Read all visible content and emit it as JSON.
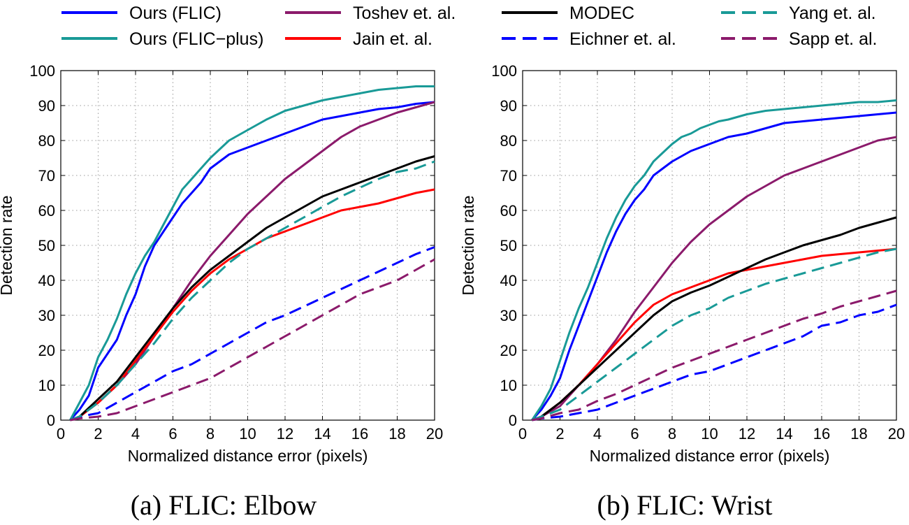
{
  "legend": {
    "entries": [
      {
        "name": "Ours (FLIC)",
        "color": "#0000ff",
        "dash": "solid"
      },
      {
        "name": "Ours (FLIC−plus)",
        "color": "#199a97",
        "dash": "solid"
      },
      {
        "name": "Toshev et. al.",
        "color": "#8b1a6b",
        "dash": "solid"
      },
      {
        "name": "Jain et. al.",
        "color": "#ff0000",
        "dash": "solid"
      },
      {
        "name": "MODEC",
        "color": "#000000",
        "dash": "solid"
      },
      {
        "name": "Eichner et. al.",
        "color": "#0000ff",
        "dash": "dashed"
      },
      {
        "name": "Yang et. al.",
        "color": "#199a97",
        "dash": "dashed"
      },
      {
        "name": "Sapp et. al.",
        "color": "#8b1a6b",
        "dash": "dashed"
      }
    ]
  },
  "chart_data": [
    {
      "type": "line",
      "title": "(a) FLIC: Elbow",
      "xlabel": "Normalized distance error (pixels)",
      "ylabel": "Detection rate",
      "xlim": [
        0,
        20
      ],
      "ylim": [
        0,
        100
      ],
      "xticks": [
        0,
        2,
        4,
        6,
        8,
        10,
        12,
        14,
        16,
        18,
        20
      ],
      "yticks": [
        0,
        10,
        20,
        30,
        40,
        50,
        60,
        70,
        80,
        90,
        100
      ],
      "grid": true,
      "series": [
        {
          "name": "Ours (FLIC)",
          "x": [
            1,
            1.5,
            2,
            2.5,
            3,
            3.5,
            4,
            4.5,
            5,
            5.5,
            6,
            6.5,
            7,
            7.5,
            8,
            8.5,
            9,
            9.5,
            10,
            10.5,
            11,
            12,
            13,
            14,
            15,
            16,
            17,
            18,
            19,
            20
          ],
          "y": [
            3,
            7,
            15,
            19,
            23,
            30,
            36,
            44,
            50,
            54,
            58,
            62,
            65,
            68,
            72,
            74,
            76,
            77,
            78,
            79,
            80,
            82,
            84,
            86,
            87,
            88,
            89,
            89.5,
            90.5,
            91
          ]
        },
        {
          "name": "Ours (FLIC−plus)",
          "x": [
            1,
            1.5,
            2,
            2.5,
            3,
            3.5,
            4,
            4.5,
            5,
            5.5,
            6,
            6.5,
            7,
            7.5,
            8,
            8.5,
            9,
            9.5,
            10,
            10.5,
            11,
            12,
            13,
            14,
            15,
            16,
            17,
            18,
            19,
            20
          ],
          "y": [
            5,
            10,
            18,
            23,
            29,
            36,
            42,
            47,
            51,
            56,
            61,
            66,
            69,
            72,
            75,
            77.5,
            80,
            81.5,
            83,
            84.5,
            86,
            88.5,
            90,
            91.5,
            92.5,
            93.5,
            94.5,
            95,
            95.5,
            95.5
          ]
        },
        {
          "name": "Toshev et. al.",
          "x": [
            1,
            2,
            3,
            4,
            5,
            6,
            7,
            8,
            9,
            10,
            11,
            12,
            13,
            14,
            15,
            16,
            17,
            18,
            19,
            20
          ],
          "y": [
            1,
            5,
            10,
            16,
            24,
            32,
            40,
            47,
            53,
            59,
            64,
            69,
            73,
            77,
            81,
            84,
            86,
            88,
            89.5,
            91
          ]
        },
        {
          "name": "Jain et. al.",
          "x": [
            1,
            2,
            3,
            4,
            5,
            6,
            7,
            8,
            9,
            10,
            11,
            12,
            13,
            14,
            15,
            16,
            17,
            18,
            19,
            20
          ],
          "y": [
            1,
            5,
            10,
            17,
            24,
            31,
            37,
            42,
            46,
            49,
            52,
            54,
            56,
            58,
            60,
            61,
            62,
            63.5,
            65,
            66
          ]
        },
        {
          "name": "MODEC",
          "x": [
            1,
            2,
            3,
            4,
            5,
            6,
            7,
            8,
            9,
            10,
            11,
            12,
            13,
            14,
            15,
            16,
            17,
            18,
            19,
            20
          ],
          "y": [
            1,
            6,
            11,
            18,
            25,
            32,
            38,
            43,
            47,
            51,
            55,
            58,
            61,
            64,
            66,
            68,
            70,
            72,
            74,
            75.5
          ]
        },
        {
          "name": "Eichner et. al.",
          "x": [
            1,
            2,
            3,
            4,
            5,
            6,
            7,
            8,
            9,
            10,
            11,
            12,
            13,
            14,
            15,
            16,
            17,
            18,
            19,
            20
          ],
          "y": [
            1,
            2,
            5,
            8,
            11,
            14,
            16,
            19,
            22,
            25,
            28,
            30,
            32.5,
            35,
            37.5,
            40,
            42.5,
            45,
            47.5,
            49.5
          ]
        },
        {
          "name": "Yang et. al.",
          "x": [
            1,
            2,
            3,
            4,
            5,
            6,
            7,
            8,
            9,
            10,
            11,
            12,
            13,
            14,
            15,
            16,
            17,
            18,
            19,
            20
          ],
          "y": [
            1,
            5,
            10,
            16,
            22,
            29,
            35,
            40,
            45,
            49,
            52,
            55,
            58,
            61,
            64,
            66.5,
            69,
            71,
            72,
            74
          ]
        },
        {
          "name": "Sapp et. al.",
          "x": [
            1,
            2,
            3,
            4,
            5,
            6,
            7,
            8,
            9,
            10,
            11,
            12,
            13,
            14,
            15,
            16,
            17,
            18,
            19,
            20
          ],
          "y": [
            0.5,
            1,
            2,
            4,
            6,
            8,
            10,
            12,
            15,
            18,
            21,
            24,
            27,
            30,
            33,
            36,
            38,
            40,
            43,
            46
          ]
        }
      ]
    },
    {
      "type": "line",
      "title": "(b) FLIC: Wrist",
      "xlabel": "Normalized distance error (pixels)",
      "ylabel": "Detection rate",
      "xlim": [
        0,
        20
      ],
      "ylim": [
        0,
        100
      ],
      "xticks": [
        0,
        2,
        4,
        6,
        8,
        10,
        12,
        14,
        16,
        18,
        20
      ],
      "yticks": [
        0,
        10,
        20,
        30,
        40,
        50,
        60,
        70,
        80,
        90,
        100
      ],
      "grid": true,
      "series": [
        {
          "name": "Ours (FLIC)",
          "x": [
            1,
            1.5,
            2,
            2.5,
            3,
            3.5,
            4,
            4.5,
            5,
            5.5,
            6,
            6.5,
            7,
            7.5,
            8,
            8.5,
            9,
            9.5,
            10,
            10.5,
            11,
            12,
            13,
            14,
            15,
            16,
            17,
            18,
            19,
            20
          ],
          "y": [
            3,
            7,
            12,
            20,
            27,
            34,
            41,
            48,
            54,
            59,
            63,
            66,
            70,
            72,
            74,
            75.5,
            77,
            78,
            79,
            80,
            81,
            82,
            83.5,
            85,
            85.5,
            86,
            86.5,
            87,
            87.5,
            88
          ]
        },
        {
          "name": "Ours (FLIC−plus)",
          "x": [
            1,
            1.5,
            2,
            2.5,
            3,
            3.5,
            4,
            4.5,
            5,
            5.5,
            6,
            6.5,
            7,
            7.5,
            8,
            8.5,
            9,
            9.5,
            10,
            10.5,
            11,
            12,
            13,
            14,
            15,
            16,
            17,
            18,
            19,
            20
          ],
          "y": [
            4,
            9,
            17,
            25,
            32,
            38,
            45,
            52,
            58,
            63,
            67,
            70,
            74,
            76.5,
            79,
            81,
            82,
            83.5,
            84.5,
            85.5,
            86,
            87.5,
            88.5,
            89,
            89.5,
            90,
            90.5,
            91,
            91,
            91.5
          ]
        },
        {
          "name": "Toshev et. al.",
          "x": [
            1,
            2,
            3,
            4,
            5,
            6,
            7,
            8,
            9,
            10,
            11,
            12,
            13,
            14,
            15,
            16,
            17,
            18,
            19,
            20
          ],
          "y": [
            1,
            4,
            10,
            16,
            23,
            31,
            38,
            45,
            51,
            56,
            60,
            64,
            67,
            70,
            72,
            74,
            76,
            78,
            80,
            81
          ]
        },
        {
          "name": "Jain et. al.",
          "x": [
            1,
            2,
            3,
            4,
            5,
            6,
            7,
            8,
            9,
            10,
            11,
            12,
            13,
            14,
            15,
            16,
            17,
            18,
            19,
            20
          ],
          "y": [
            1,
            5,
            10,
            16,
            22,
            28,
            33,
            36,
            38,
            40,
            42,
            43,
            44,
            45,
            46,
            47,
            47.5,
            48,
            48.5,
            49
          ]
        },
        {
          "name": "MODEC",
          "x": [
            1,
            2,
            3,
            4,
            5,
            6,
            7,
            8,
            9,
            10,
            11,
            12,
            13,
            14,
            15,
            16,
            17,
            18,
            19,
            20
          ],
          "y": [
            1,
            5,
            10,
            15,
            20,
            25,
            30,
            34,
            36.5,
            38.5,
            41,
            43.5,
            46,
            48,
            50,
            51.5,
            53,
            55,
            56.5,
            58
          ]
        },
        {
          "name": "Eichner et. al.",
          "x": [
            1,
            2,
            3,
            4,
            5,
            6,
            7,
            8,
            9,
            10,
            11,
            12,
            13,
            14,
            15,
            16,
            17,
            18,
            19,
            20
          ],
          "y": [
            0.5,
            1,
            2,
            3,
            5,
            7,
            9,
            11,
            13,
            14,
            16,
            18,
            20,
            22,
            24,
            27,
            28,
            30,
            31,
            33
          ]
        },
        {
          "name": "Yang et. al.",
          "x": [
            1,
            2,
            3,
            4,
            5,
            6,
            7,
            8,
            9,
            10,
            11,
            12,
            13,
            14,
            15,
            16,
            17,
            18,
            19,
            20
          ],
          "y": [
            1,
            3,
            7,
            11,
            15,
            19,
            23,
            27,
            30,
            32,
            35,
            37,
            39,
            40.5,
            42,
            43.5,
            45,
            46.5,
            48,
            49
          ]
        },
        {
          "name": "Sapp et. al.",
          "x": [
            1,
            2,
            3,
            4,
            5,
            6,
            7,
            8,
            9,
            10,
            11,
            12,
            13,
            14,
            15,
            16,
            17,
            18,
            19,
            20
          ],
          "y": [
            0.5,
            2,
            3,
            5.5,
            7.5,
            10,
            12.5,
            15,
            17,
            19,
            21,
            23,
            25,
            27,
            29,
            30.5,
            32.5,
            34,
            35.5,
            37
          ]
        }
      ]
    }
  ]
}
